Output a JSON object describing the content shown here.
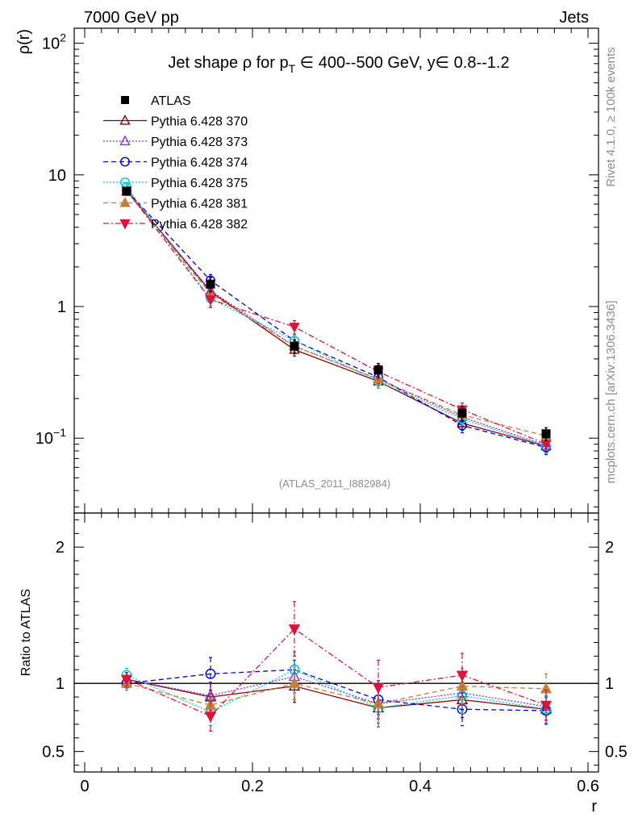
{
  "header": {
    "energy_label": "7000 GeV pp",
    "category_label": "Jets"
  },
  "side_labels": {
    "rivet": "Rivet 4.1.0, ≥ 100k events",
    "mcplots": "mcplots.cern.ch [arXiv:1306.3436]"
  },
  "analysis_tag": "(ATLAS_2011_I882984)",
  "chart_data": [
    {
      "type": "line",
      "title": "Jet shape ρ for p_T ∈ 400--500 GeV, y∈ 0.8--1.2",
      "title_parts": {
        "pre": "Jet shape ρ for p",
        "sub": "T",
        "post": " ∈ 400--500 GeV, y∈ 0.8--1.2"
      },
      "xlabel": "r",
      "ylabel": "ρ(r)",
      "yscale": "log",
      "xlim": [
        -0.0125,
        0.6125
      ],
      "ylim": [
        0.027,
        130
      ],
      "yticks": [
        {
          "value": 100,
          "base": "10",
          "exp": "2"
        },
        {
          "value": 10,
          "label": "10"
        },
        {
          "value": 1,
          "label": "1"
        },
        {
          "value": 0.1,
          "base": "10",
          "exp": "−1"
        }
      ],
      "x": [
        0.05,
        0.15,
        0.25,
        0.35,
        0.45,
        0.55
      ],
      "legend_position": "top-left",
      "series": [
        {
          "name": "ATLAS",
          "color": "#000000",
          "marker": "square-filled",
          "dash": "none",
          "data": true,
          "values": [
            7.5,
            1.48,
            0.5,
            0.33,
            0.155,
            0.108
          ],
          "err": [
            0.45,
            0.18,
            0.06,
            0.04,
            0.02,
            0.012
          ]
        },
        {
          "name": "Pythia 6.428 370",
          "color": "#8b0000",
          "marker": "triangle-up-open",
          "dash": "none",
          "values": [
            7.6,
            1.3,
            0.47,
            0.27,
            0.13,
            0.087
          ],
          "err": [
            0.4,
            0.15,
            0.05,
            0.03,
            0.015,
            0.01
          ]
        },
        {
          "name": "Pythia 6.428 373",
          "color": "#8a2be2",
          "marker": "triangle-up-open",
          "dash": "2,2",
          "values": [
            7.6,
            1.32,
            0.5,
            0.28,
            0.145,
            0.088
          ],
          "err": [
            0.4,
            0.15,
            0.05,
            0.03,
            0.015,
            0.01
          ]
        },
        {
          "name": "Pythia 6.428 374",
          "color": "#0000cd",
          "marker": "circle-open",
          "dash": "6,4",
          "values": [
            7.6,
            1.58,
            0.55,
            0.29,
            0.125,
            0.085
          ],
          "err": [
            0.4,
            0.17,
            0.06,
            0.03,
            0.015,
            0.01
          ]
        },
        {
          "name": "Pythia 6.428 375",
          "color": "#00ced1",
          "marker": "circle-open",
          "dash": "2,2",
          "values": [
            8.1,
            1.15,
            0.55,
            0.27,
            0.14,
            0.087
          ],
          "err": [
            0.45,
            0.14,
            0.06,
            0.03,
            0.015,
            0.01
          ]
        },
        {
          "name": "Pythia 6.428 381",
          "color": "#c0803a",
          "marker": "triangle-up-filled",
          "dash": "6,4",
          "values": [
            7.5,
            1.25,
            0.5,
            0.28,
            0.15,
            0.104
          ],
          "err": [
            0.4,
            0.15,
            0.05,
            0.03,
            0.015,
            0.012
          ]
        },
        {
          "name": "Pythia 6.428 382",
          "color": "#dc143c",
          "marker": "triangle-down-filled",
          "dash": "7,3,2,3",
          "values": [
            7.6,
            1.13,
            0.7,
            0.32,
            0.165,
            0.09
          ],
          "err": [
            0.4,
            0.15,
            0.08,
            0.04,
            0.02,
            0.01
          ]
        }
      ]
    },
    {
      "type": "line",
      "title": "",
      "xlabel": "r",
      "ylabel": "Ratio to ATLAS",
      "xlim": [
        -0.0125,
        0.6125
      ],
      "ylim": [
        0.35,
        2.25
      ],
      "xticks": [
        0,
        0.2,
        0.4,
        0.6
      ],
      "xtick_labels": [
        "0",
        "0.2",
        "0.4",
        "0.6"
      ],
      "yticks": [
        0.5,
        1,
        2
      ],
      "ytick_labels": [
        "0.5",
        "1",
        "2"
      ],
      "x": [
        0.05,
        0.15,
        0.25,
        0.35,
        0.45,
        0.55
      ],
      "series": [
        {
          "name": "ATLAS",
          "color": "#000000",
          "marker": "none",
          "dash": "none",
          "values": [
            1,
            1,
            1,
            1,
            1,
            1
          ]
        },
        {
          "name": "Pythia 6.428 370",
          "color": "#8b0000",
          "marker": "triangle-up-open",
          "dash": "none",
          "values": [
            1.03,
            0.9,
            0.98,
            0.82,
            0.88,
            0.81
          ],
          "err": [
            0.05,
            0.1,
            0.12,
            0.14,
            0.13,
            0.1
          ]
        },
        {
          "name": "Pythia 6.428 373",
          "color": "#8a2be2",
          "marker": "triangle-up-open",
          "dash": "2,2",
          "values": [
            1.03,
            0.91,
            1.05,
            0.85,
            0.93,
            0.83
          ],
          "err": [
            0.05,
            0.1,
            0.12,
            0.14,
            0.13,
            0.1
          ]
        },
        {
          "name": "Pythia 6.428 374",
          "color": "#0000cd",
          "marker": "circle-open",
          "dash": "6,4",
          "values": [
            1.0,
            1.07,
            1.1,
            0.88,
            0.81,
            0.8
          ],
          "err": [
            0.05,
            0.12,
            0.13,
            0.14,
            0.12,
            0.1
          ]
        },
        {
          "name": "Pythia 6.428 375",
          "color": "#00ced1",
          "marker": "circle-open",
          "dash": "2,2",
          "values": [
            1.06,
            0.79,
            1.1,
            0.82,
            0.91,
            0.81
          ],
          "err": [
            0.05,
            0.1,
            0.13,
            0.14,
            0.13,
            0.1
          ]
        },
        {
          "name": "Pythia 6.428 381",
          "color": "#c0803a",
          "marker": "triangle-up-filled",
          "dash": "6,4",
          "values": [
            1.0,
            0.84,
            1.0,
            0.85,
            0.98,
            0.96
          ],
          "err": [
            0.05,
            0.1,
            0.12,
            0.14,
            0.13,
            0.11
          ]
        },
        {
          "name": "Pythia 6.428 382",
          "color": "#dc143c",
          "marker": "triangle-down-filled",
          "dash": "7,3,2,3",
          "values": [
            1.03,
            0.76,
            1.4,
            0.97,
            1.06,
            0.84
          ],
          "err": [
            0.05,
            0.11,
            0.2,
            0.2,
            0.16,
            0.11
          ]
        }
      ]
    }
  ]
}
